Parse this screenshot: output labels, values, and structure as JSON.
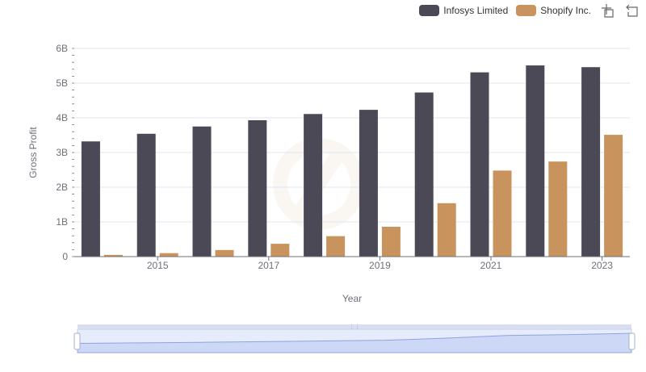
{
  "legend": {
    "items": [
      {
        "name": "Infosys Limited",
        "color": "#4a4955"
      },
      {
        "name": "Shopify Inc.",
        "color": "#c9935e"
      }
    ],
    "tools": [
      "zoom-icon",
      "restore-icon"
    ]
  },
  "chart_data": {
    "type": "bar",
    "title": "",
    "xlabel": "Year",
    "ylabel": "Gross Profit",
    "categories": [
      "2014",
      "2015",
      "2016",
      "2017",
      "2018",
      "2019",
      "2020",
      "2021",
      "2022",
      "2023"
    ],
    "x_tick_labels": [
      "2015",
      "2017",
      "2019",
      "2021",
      "2023"
    ],
    "y_tick_labels": [
      "0",
      "1B",
      "2B",
      "3B",
      "4B",
      "5B",
      "6B"
    ],
    "ylim": [
      0,
      6000000000
    ],
    "grid": true,
    "legend_position": "top-right",
    "series": [
      {
        "name": "Infosys Limited",
        "color": "#4a4955",
        "values": [
          3320000000,
          3540000000,
          3750000000,
          3930000000,
          4110000000,
          4230000000,
          4730000000,
          5310000000,
          5510000000,
          5460000000
        ]
      },
      {
        "name": "Shopify Inc.",
        "color": "#c9935e",
        "values": [
          50000000,
          100000000,
          190000000,
          370000000,
          590000000,
          860000000,
          1540000000,
          2480000000,
          2740000000,
          3510000000
        ]
      }
    ],
    "data_zoom": {
      "start": 0,
      "end": 100
    }
  }
}
